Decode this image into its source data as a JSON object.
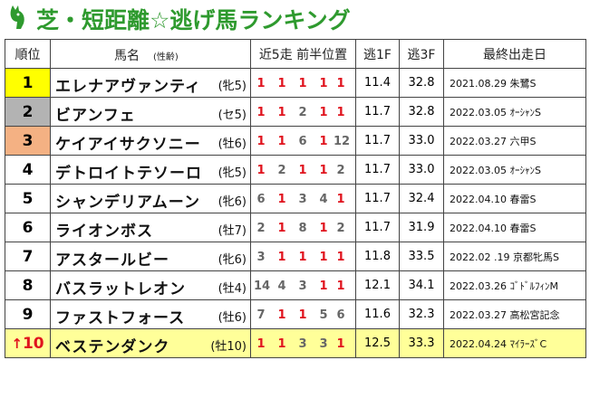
{
  "title": "芝・短距離☆逃げ馬ランキング",
  "headers": {
    "rank": "順位",
    "name": "馬名",
    "sexage": "(性齢)",
    "positions": "近5走 前半位置",
    "f1": "逃1F",
    "f3": "逃3F",
    "last": "最終出走日"
  },
  "rows": [
    {
      "rank": "1",
      "name": "エレナアヴァンティ",
      "sexage": "(牝5)",
      "pos": [
        "1",
        "1",
        "1",
        "1",
        "1"
      ],
      "f1": "11.4",
      "f3": "32.8",
      "last": "2021.08.29 朱鷺S"
    },
    {
      "rank": "2",
      "name": "ビアンフェ",
      "sexage": "(セ5)",
      "pos": [
        "1",
        "1",
        "2",
        "1",
        "1"
      ],
      "f1": "11.7",
      "f3": "32.8",
      "last": "2022.03.05 ｵｰｼｬﾝS"
    },
    {
      "rank": "3",
      "name": "ケイアイサクソニー",
      "sexage": "(牡6)",
      "pos": [
        "1",
        "1",
        "6",
        "1",
        "12"
      ],
      "f1": "11.7",
      "f3": "33.0",
      "last": "2022.03.27 六甲S"
    },
    {
      "rank": "4",
      "name": "デトロイトテソーロ",
      "sexage": "(牝5)",
      "pos": [
        "1",
        "2",
        "1",
        "1",
        "2"
      ],
      "f1": "11.7",
      "f3": "33.0",
      "last": "2022.03.05 ｵｰｼｬﾝS"
    },
    {
      "rank": "5",
      "name": "シャンデリアムーン",
      "sexage": "(牝6)",
      "pos": [
        "6",
        "1",
        "3",
        "4",
        "1"
      ],
      "f1": "11.7",
      "f3": "32.4",
      "last": "2022.04.10 春雷S"
    },
    {
      "rank": "6",
      "name": "ライオンボス",
      "sexage": "(牡7)",
      "pos": [
        "2",
        "1",
        "8",
        "1",
        "2"
      ],
      "f1": "11.7",
      "f3": "31.9",
      "last": "2022.04.10 春雷S"
    },
    {
      "rank": "7",
      "name": "アスタールビー",
      "sexage": "(牝6)",
      "pos": [
        "3",
        "1",
        "1",
        "1",
        "1"
      ],
      "f1": "11.8",
      "f3": "33.5",
      "last": "2022.02 .19 京都牝馬S"
    },
    {
      "rank": "8",
      "name": "バスラットレオン",
      "sexage": "(牡4)",
      "pos": [
        "14",
        "4",
        "3",
        "1",
        "1"
      ],
      "f1": "12.1",
      "f3": "34.1",
      "last": "2022.03.26 ｺﾞﾄﾞﾙﾌｨﾝM"
    },
    {
      "rank": "9",
      "name": "ファストフォース",
      "sexage": "(牡6)",
      "pos": [
        "7",
        "1",
        "1",
        "5",
        "6"
      ],
      "f1": "11.6",
      "f3": "32.3",
      "last": "2022.03.27 高松宮記念"
    },
    {
      "rank": "10",
      "arrow": "↑",
      "name": "ベステンダンク",
      "sexage": "(牡10)",
      "pos": [
        "1",
        "1",
        "3",
        "3",
        "1"
      ],
      "f1": "12.5",
      "f3": "33.3",
      "last": "2022.04.24 ﾏｲﾗｰｽﾞC"
    }
  ]
}
